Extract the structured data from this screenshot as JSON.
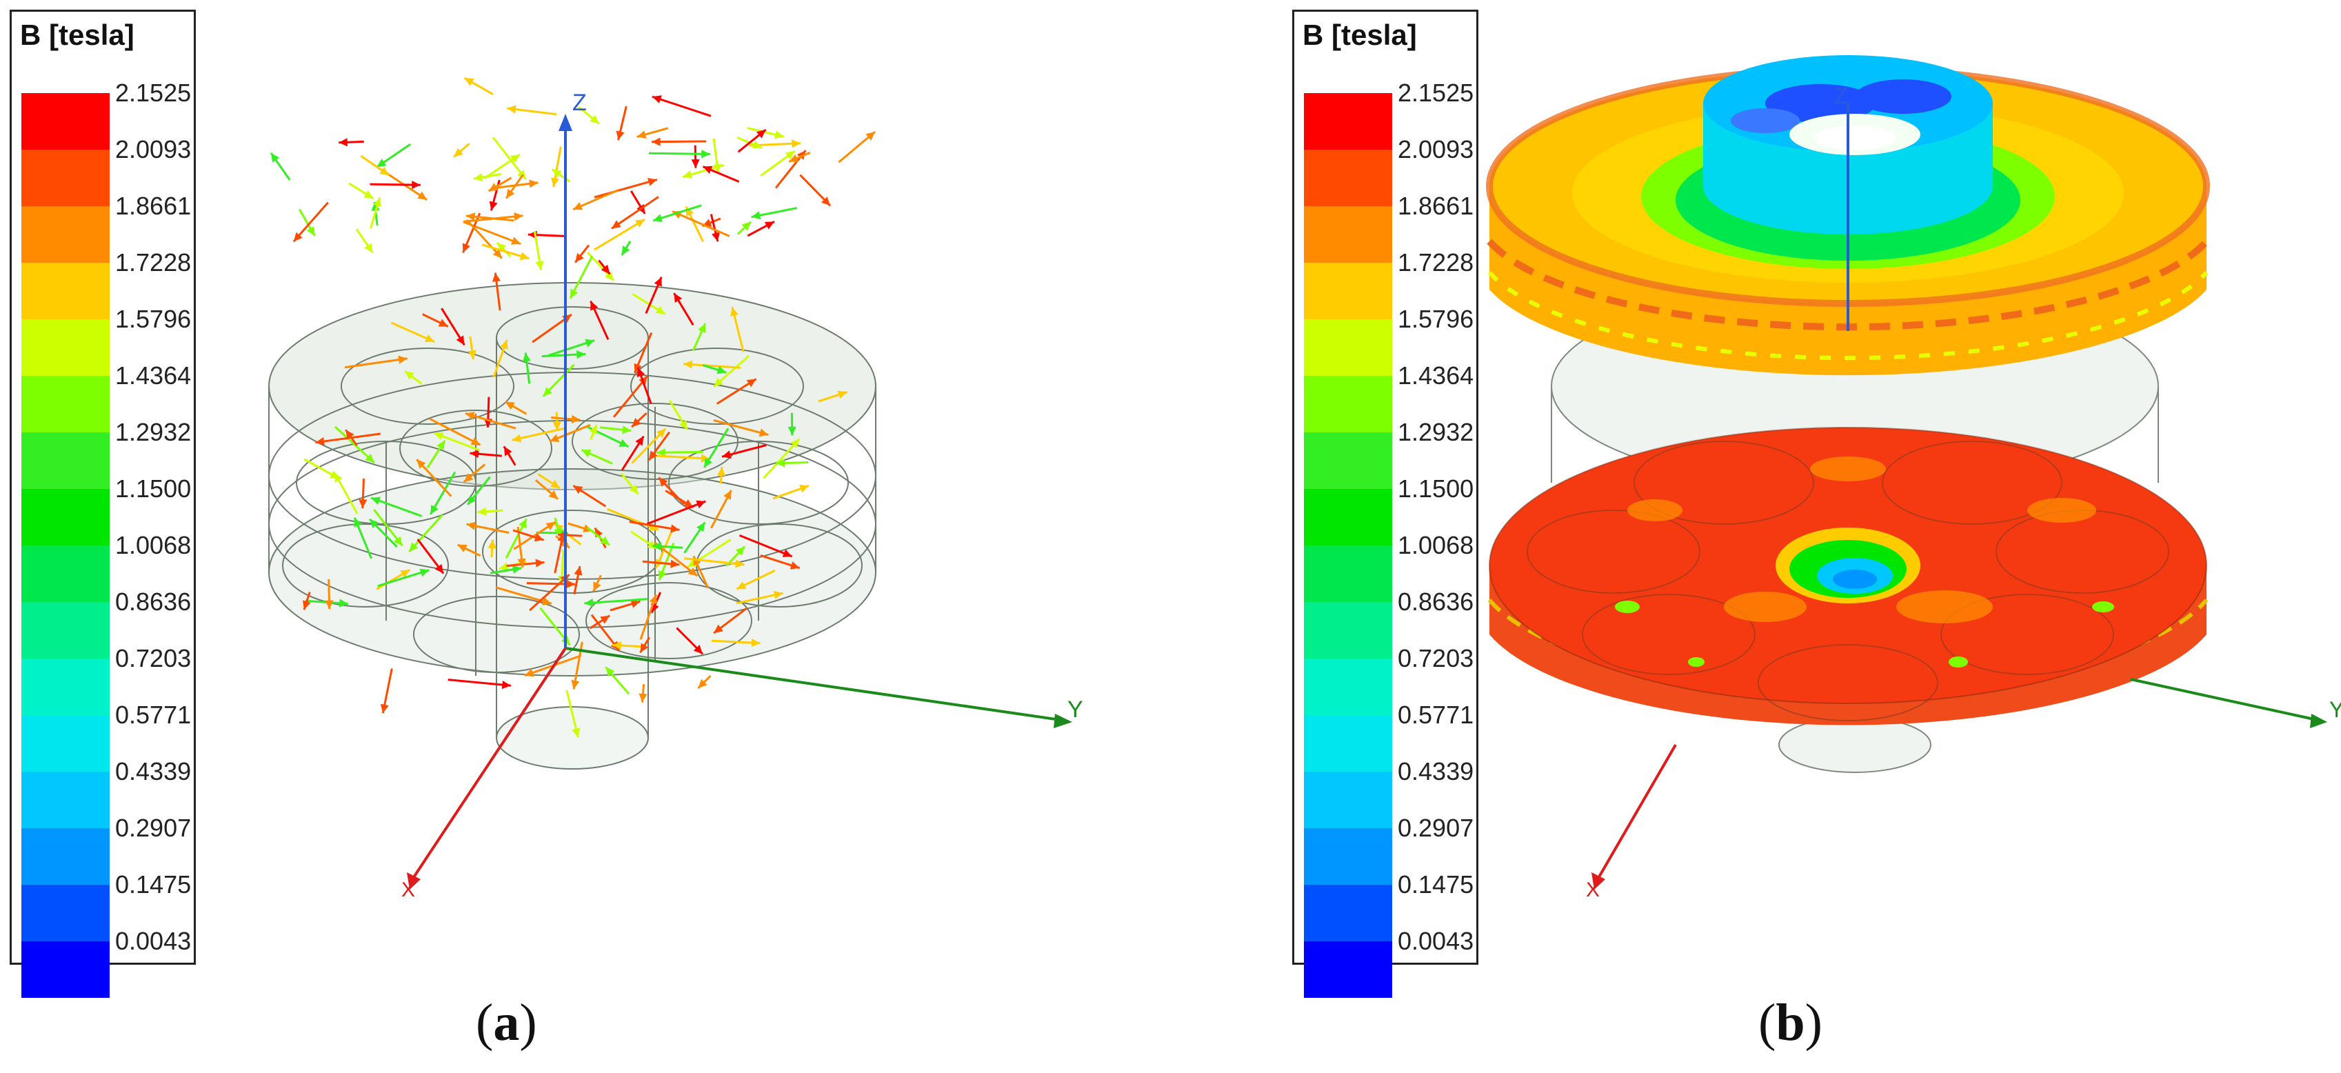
{
  "legend": {
    "title": "B [tesla]",
    "unit": "tesla",
    "ticks": [
      "2.1525",
      "2.0093",
      "1.8661",
      "1.7228",
      "1.5796",
      "1.4364",
      "1.2932",
      "1.1500",
      "1.0068",
      "0.8636",
      "0.7203",
      "0.5771",
      "0.4339",
      "0.2907",
      "0.1475",
      "0.0043"
    ],
    "colors": [
      "#ff0000",
      "#ff4a00",
      "#ff8c00",
      "#ffcc00",
      "#ccff00",
      "#7dff00",
      "#33ee22",
      "#00e600",
      "#00e64d",
      "#00ee8c",
      "#00f2c8",
      "#00e6ee",
      "#00c8ff",
      "#0096ff",
      "#0050ff",
      "#0000ff"
    ]
  },
  "axes": {
    "x": "X",
    "y": "Y",
    "z": "Z"
  },
  "panels": [
    {
      "id": "a",
      "caption": "a",
      "view": "vector"
    },
    {
      "id": "b",
      "caption": "b",
      "view": "surface"
    }
  ]
}
